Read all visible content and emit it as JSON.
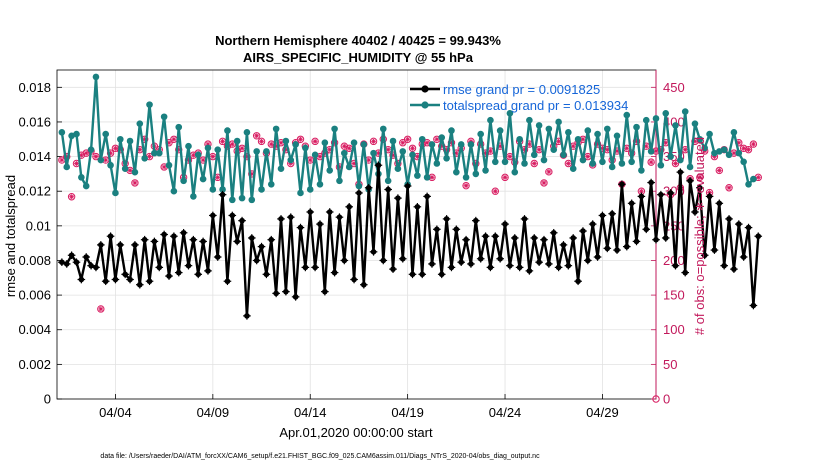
{
  "chart_data": {
    "type": "line",
    "title": "Northern Hemisphere 40402 / 40425 = 99.943%",
    "subtitle": "AIRS_SPECIFIC_HUMIDITY @ 55 hPa",
    "xlabel": "Apr.01,2020 00:00:00 start",
    "ylabel": "rmse and totalspread",
    "ylabel_right": "# of obs: o=possible; ∗=evaluated",
    "footer": "data file: /Users/raeder/DAI/ATM_forcXX/CAM6_setup/f.e21.FHIST_BGC.f09_025.CAM6assim.011/Diags_NTrS_2020-04/obs_diag_output.nc",
    "xlim": [
      0.0,
      30.75
    ],
    "ylim": [
      0,
      0.019
    ],
    "ylim_right": [
      0,
      475
    ],
    "x_ticks": [
      3,
      8,
      13,
      18,
      23,
      28
    ],
    "x_tick_labels": [
      "04/04",
      "04/09",
      "04/14",
      "04/19",
      "04/24",
      "04/29"
    ],
    "y_ticks": [
      0,
      0.002,
      0.004,
      0.006,
      0.008,
      0.01,
      0.012,
      0.014,
      0.016,
      0.018
    ],
    "y_tick_labels": [
      "0",
      "0.002",
      "0.004",
      "0.006",
      "0.008",
      "0.01",
      "0.012",
      "0.014",
      "0.016",
      "0.018"
    ],
    "y_right_ticks": [
      0,
      50,
      100,
      150,
      200,
      250,
      300,
      350,
      400,
      450
    ],
    "y_right_tick_labels": [
      "0",
      "50",
      "100",
      "150",
      "200",
      "250",
      "300",
      "350",
      "400",
      "450"
    ],
    "x_start": 0.25,
    "x_step": 0.25,
    "series": [
      {
        "name": "rmse grand pr = 0.0091825",
        "color": "#000000",
        "marker": "asterisk",
        "values": [
          0.0079,
          0.0078,
          0.0083,
          0.0079,
          0.0069,
          0.0082,
          0.0077,
          0.0076,
          0.0089,
          0.0068,
          0.0094,
          0.0069,
          0.0089,
          0.0072,
          0.0069,
          0.0089,
          0.0066,
          0.0092,
          0.0068,
          0.0091,
          0.0076,
          0.0095,
          0.0071,
          0.0094,
          0.0073,
          0.0096,
          0.0077,
          0.0092,
          0.0072,
          0.0091,
          0.0074,
          0.0106,
          0.0082,
          0.0118,
          0.0068,
          0.0106,
          0.0091,
          0.0103,
          0.0048,
          0.0093,
          0.008,
          0.0088,
          0.0072,
          0.0092,
          0.0061,
          0.0104,
          0.0062,
          0.0105,
          0.0059,
          0.0099,
          0.0076,
          0.0108,
          0.0076,
          0.0101,
          0.0062,
          0.0108,
          0.0073,
          0.0105,
          0.008,
          0.0111,
          0.0069,
          0.0119,
          0.0066,
          0.0122,
          0.0085,
          0.0135,
          0.008,
          0.0121,
          0.0075,
          0.0116,
          0.0081,
          0.0123,
          0.0072,
          0.0111,
          0.0072,
          0.0117,
          0.0078,
          0.0098,
          0.0072,
          0.0104,
          0.0076,
          0.0098,
          0.0079,
          0.0092,
          0.0078,
          0.0103,
          0.0081,
          0.0094,
          0.0076,
          0.0094,
          0.0081,
          0.0101,
          0.0077,
          0.0093,
          0.0076,
          0.0104,
          0.0074,
          0.0093,
          0.0079,
          0.0092,
          0.0078,
          0.0096,
          0.0076,
          0.0089,
          0.0077,
          0.0093,
          0.0068,
          0.0097,
          0.008,
          0.0101,
          0.0082,
          0.0106,
          0.0087,
          0.0107,
          0.0086,
          0.0124,
          0.0088,
          0.0113,
          0.0091,
          0.0117,
          0.0098,
          0.0125,
          0.0092,
          0.0118,
          0.0093,
          0.0119,
          0.0077,
          0.0131,
          0.0073,
          0.0126,
          0.0108,
          0.0122,
          0.0083,
          0.0117,
          0.0086,
          0.0113,
          0.0077,
          0.0104,
          0.0075,
          0.0101,
          0.0082,
          0.0099,
          0.0054,
          0.0094
        ]
      },
      {
        "name": "totalspread grand pr = 0.013934",
        "color": "#1a8080",
        "marker": "dot",
        "values": [
          0.0154,
          0.0134,
          0.0152,
          0.0153,
          0.0128,
          0.0123,
          0.0144,
          0.0186,
          0.0138,
          0.0153,
          0.0135,
          0.0119,
          0.015,
          0.0133,
          0.0149,
          0.0131,
          0.0159,
          0.0139,
          0.017,
          0.0142,
          0.0142,
          0.0163,
          0.0135,
          0.012,
          0.0157,
          0.0126,
          0.0146,
          0.0117,
          0.0141,
          0.0127,
          0.0145,
          0.0121,
          0.0144,
          0.0121,
          0.0155,
          0.0115,
          0.0149,
          0.0116,
          0.0154,
          0.0115,
          0.0143,
          0.0121,
          0.0143,
          0.0124,
          0.0156,
          0.0133,
          0.0149,
          0.0138,
          0.0147,
          0.0119,
          0.0145,
          0.0121,
          0.0141,
          0.0124,
          0.0148,
          0.0132,
          0.0156,
          0.0126,
          0.0142,
          0.0134,
          0.0148,
          0.0123,
          0.0147,
          0.0121,
          0.0142,
          0.013,
          0.0156,
          0.0126,
          0.0149,
          0.0133,
          0.0143,
          0.0124,
          0.0141,
          0.0129,
          0.015,
          0.0128,
          0.0147,
          0.0136,
          0.0151,
          0.0139,
          0.0155,
          0.0131,
          0.0147,
          0.0128,
          0.0147,
          0.013,
          0.0153,
          0.0132,
          0.0161,
          0.0137,
          0.0155,
          0.0137,
          0.0165,
          0.0131,
          0.015,
          0.0136,
          0.0161,
          0.0141,
          0.0158,
          0.0138,
          0.0156,
          0.0144,
          0.016,
          0.0141,
          0.0154,
          0.0133,
          0.015,
          0.0138,
          0.0155,
          0.0136,
          0.0153,
          0.0137,
          0.0156,
          0.0134,
          0.0152,
          0.0136,
          0.0164,
          0.0137,
          0.0157,
          0.0132,
          0.0161,
          0.0143,
          0.0162,
          0.0135,
          0.0165,
          0.014,
          0.0158,
          0.0138,
          0.0166,
          0.0134,
          0.0159,
          0.015,
          0.0145,
          0.0153,
          0.0142,
          0.0143,
          0.0144,
          0.0141,
          0.0154,
          0.0142,
          0.0137,
          0.0124,
          0.0127
        ]
      }
    ],
    "obs_evaluated": {
      "name": "# obs evaluated",
      "color": "#d81b60",
      "axis": "right",
      "values": [
        345,
        350,
        292,
        340,
        352,
        355,
        358,
        350,
        130,
        345,
        355,
        362,
        360,
        340,
        330,
        312,
        360,
        375,
        350,
        365,
        360,
        335,
        370,
        375,
        360,
        320,
        345,
        352,
        355,
        345,
        368,
        350,
        320,
        372,
        365,
        368,
        358,
        362,
        350,
        325,
        380,
        372,
        355,
        368,
        365,
        370,
        360,
        340,
        370,
        375,
        365,
        345,
        372,
        350,
        355,
        360,
        370,
        335,
        365,
        362,
        340,
        310,
        368,
        345,
        372,
        355,
        375,
        360,
        352,
        340,
        370,
        375,
        362,
        350,
        368,
        370,
        320,
        375,
        365,
        360,
        370,
        355,
        362,
        308,
        372,
        340,
        368,
        355,
        358,
        300,
        365,
        320,
        350,
        342,
        372,
        360,
        368,
        340,
        360,
        312,
        328,
        365,
        372,
        352,
        340,
        365,
        370,
        375,
        350,
        338,
        368,
        362,
        360,
        345,
        358,
        310,
        362,
        355,
        372,
        300,
        365,
        342,
        358,
        360,
        370,
        295,
        340,
        305,
        360,
        318,
        372,
        320,
        358,
        298,
        350,
        330,
        360,
        305,
        355,
        370,
        362,
        360,
        368,
        320
      ]
    }
  }
}
